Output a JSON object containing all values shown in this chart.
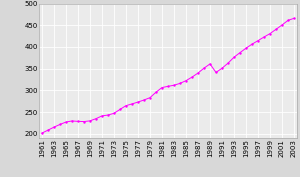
{
  "years": [
    1961,
    1962,
    1963,
    1964,
    1965,
    1966,
    1967,
    1968,
    1969,
    1970,
    1971,
    1972,
    1973,
    1974,
    1975,
    1976,
    1977,
    1978,
    1979,
    1980,
    1981,
    1982,
    1983,
    1984,
    1985,
    1986,
    1987,
    1988,
    1989,
    1990,
    1991,
    1992,
    1993,
    1994,
    1995,
    1996,
    1997,
    1998,
    1999,
    2000,
    2001,
    2002,
    2003
  ],
  "population": [
    201463,
    208266,
    215208,
    221410,
    226951,
    229399,
    228468,
    228022,
    229679,
    234708,
    241091,
    243024,
    247073,
    256029,
    264742,
    268660,
    272980,
    277738,
    283099,
    295703,
    306448,
    309148,
    311770,
    316048,
    322285,
    330442,
    339819,
    351100,
    360828,
    341256,
    350898,
    362584,
    376294,
    386849,
    397095,
    406338,
    414476,
    422838,
    430746,
    440609,
    450569,
    461160,
    465959
  ],
  "line_color": "#ff00ff",
  "marker_color": "#ff00ff",
  "bg_color": "#d8d8d8",
  "plot_bg_color": "#ebebeb",
  "grid_color": "#ffffff",
  "xlim_min": 1960.5,
  "xlim_max": 2003.5,
  "ylim_min": 190000,
  "ylim_max": 500000,
  "yticks": [
    200000,
    250000,
    300000,
    350000,
    400000,
    450000,
    500000
  ],
  "ytick_labels": [
    "200",
    "250",
    "300",
    "350",
    "400",
    "450",
    "500"
  ],
  "fontsize": 5.0
}
